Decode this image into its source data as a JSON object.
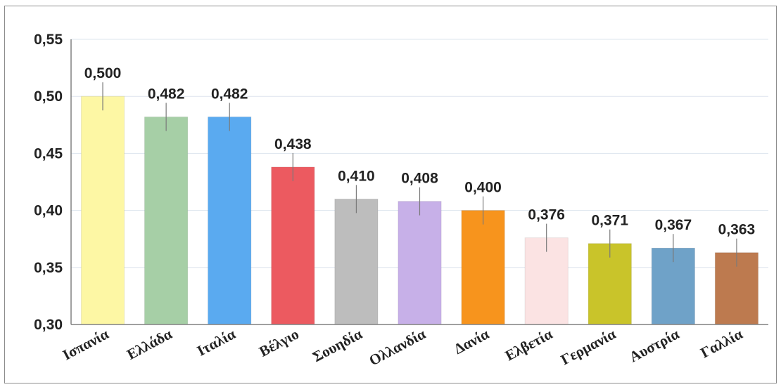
{
  "chart_data": {
    "type": "bar",
    "categories": [
      "Ισπανία",
      "Ελλάδα",
      "Ιταλία",
      "Βέλγιο",
      "Σουηδία",
      "Ολλανδία",
      "Δανία",
      "Ελβετία",
      "Γερμανία",
      "Αυστρία",
      "Γαλλία"
    ],
    "values": [
      0.5,
      0.482,
      0.482,
      0.438,
      0.41,
      0.408,
      0.4,
      0.376,
      0.371,
      0.367,
      0.363
    ],
    "value_labels": [
      "0,500",
      "0,482",
      "0,482",
      "0,438",
      "0,410",
      "0,408",
      "0,400",
      "0,376",
      "0,371",
      "0,367",
      "0,363"
    ],
    "error_bars": true,
    "colors": [
      "#fdf7a4",
      "#a6cfa6",
      "#5aaaf0",
      "#ec5a60",
      "#bdbdbd",
      "#c7b0e8",
      "#f7941d",
      "#fbe3e3",
      "#c9c42a",
      "#6fa2c8",
      "#bd7a4f"
    ],
    "ylim": [
      0.3,
      0.55
    ],
    "yticks": [
      0.3,
      0.35,
      0.4,
      0.45,
      0.5,
      0.55
    ],
    "ytick_labels": [
      "0,30",
      "0,35",
      "0,40",
      "0,45",
      "0,50",
      "0,55"
    ],
    "grid": true,
    "title": "",
    "xlabel": "",
    "ylabel": ""
  }
}
